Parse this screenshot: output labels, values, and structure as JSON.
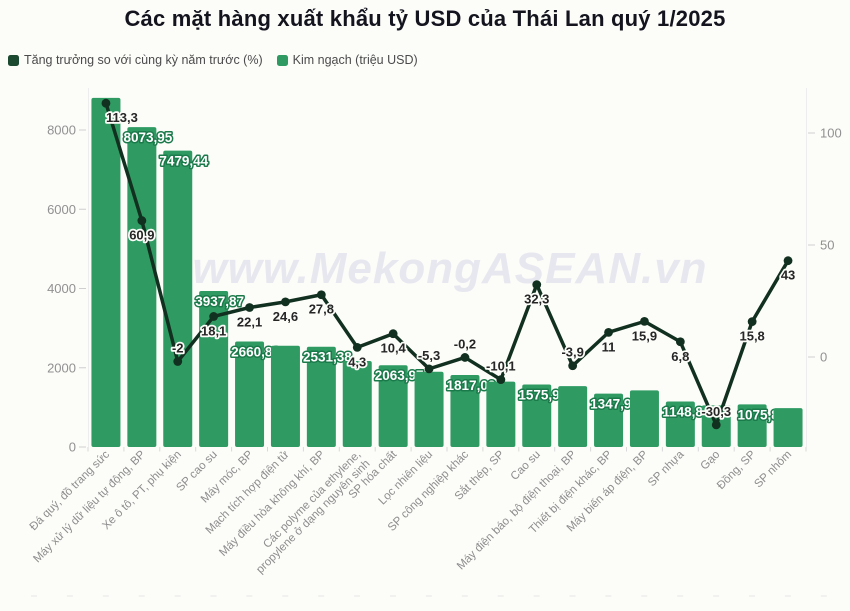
{
  "title": "Các mặt hàng xuất khẩu tỷ USD của Thái Lan quý 1/2025",
  "watermark": "www.MekongASEAN.vn",
  "legend": [
    {
      "label": "Tăng trưởng so với cùng kỳ năm trước (%)",
      "color": "#1c4a31"
    },
    {
      "label": "Kim ngạch (triệu USD)",
      "color": "#2f9b63"
    }
  ],
  "colors": {
    "background": "#fcfcf9",
    "bar": "#2f9b63",
    "line": "#12301f",
    "bar_label_stroke": "#1b7a4a",
    "axis_text": "#919191",
    "watermark": "#e7e7ef"
  },
  "chart_data": {
    "type": "bar",
    "subtype": "combo-bar-line-dual-axis",
    "title": "Các mặt hàng xuất khẩu tỷ USD của Thái Lan quý 1/2025",
    "categories": [
      "Đá quý, đồ trang sức",
      "Máy xử lý dữ liệu tự động, BP",
      "Xe ô tô, PT, phụ kiện",
      "SP cao su",
      "Máy móc, BP",
      "Mạch tích hợp điện tử",
      "Máy điều hòa không khí, BP",
      "Các polyme của ethylene,\npropylene ở dạng nguyên sinh",
      "SP hóa chất",
      "Lọc nhiên liệu",
      "SP công nghiệp khác",
      "Sắt thép, SP",
      "Cao su",
      "Máy điện báo, bộ điện thoại, BP",
      "Thiết bị điện khác, BP",
      "Máy biến áp điện, BP",
      "SP nhựa",
      "Gạo",
      "Đồng, SP",
      "SP nhôm"
    ],
    "series": [
      {
        "name": "Tăng trưởng so với cùng kỳ năm trước (%)",
        "type": "line",
        "axis": "right",
        "color": "#12301f",
        "values": [
          113.3,
          60.9,
          -2,
          18.1,
          22.1,
          24.6,
          27.8,
          4.3,
          10.4,
          -5.3,
          -0.2,
          -10.1,
          32.3,
          -3.9,
          11,
          15.9,
          6.8,
          -30.3,
          15.8,
          43
        ],
        "point_labels": [
          "113,3",
          "60,9",
          "-2",
          "18,1",
          "22,1",
          "24,6",
          "27,8",
          "4,3",
          "10,4",
          "-5,3",
          "-0,2",
          "-10,1",
          "32,3",
          "-3,9",
          "11",
          "15,9",
          "6,8",
          "-30,3",
          "15,8",
          "43"
        ]
      },
      {
        "name": "Kim ngạch (triệu USD)",
        "type": "bar",
        "axis": "left",
        "color": "#2f9b63",
        "values": [
          8810,
          8073.95,
          7479.44,
          3937.87,
          2660.89,
          2555,
          2531.38,
          2170,
          2063.97,
          1900,
          1817.02,
          1650,
          1575.98,
          1535,
          1347.94,
          1430,
          1148.88,
          1050,
          1075.8,
          980
        ],
        "bar_labels": [
          "",
          "8073,95",
          "7479,44",
          "3937,87",
          "2660,89",
          "",
          "2531,38",
          "",
          "2063,97",
          "",
          "1817,02",
          "",
          "1575,98",
          "",
          "1347,94",
          "",
          "1148,88",
          "",
          "1075,8",
          ""
        ],
        "estimated_indices": [
          0,
          5,
          7,
          9,
          11,
          13,
          15,
          17,
          19
        ]
      }
    ],
    "left_axis": {
      "label": "Kim ngạch (triệu USD)",
      "ticks": [
        0,
        2000,
        4000,
        6000,
        8000
      ],
      "range": [
        0,
        9000
      ]
    },
    "right_axis": {
      "label": "Tăng trưởng so với cùng kỳ năm trước (%)",
      "ticks": [
        0,
        50,
        100
      ],
      "range": [
        -40,
        120
      ]
    },
    "grid": false,
    "legend_position": "top-left"
  }
}
